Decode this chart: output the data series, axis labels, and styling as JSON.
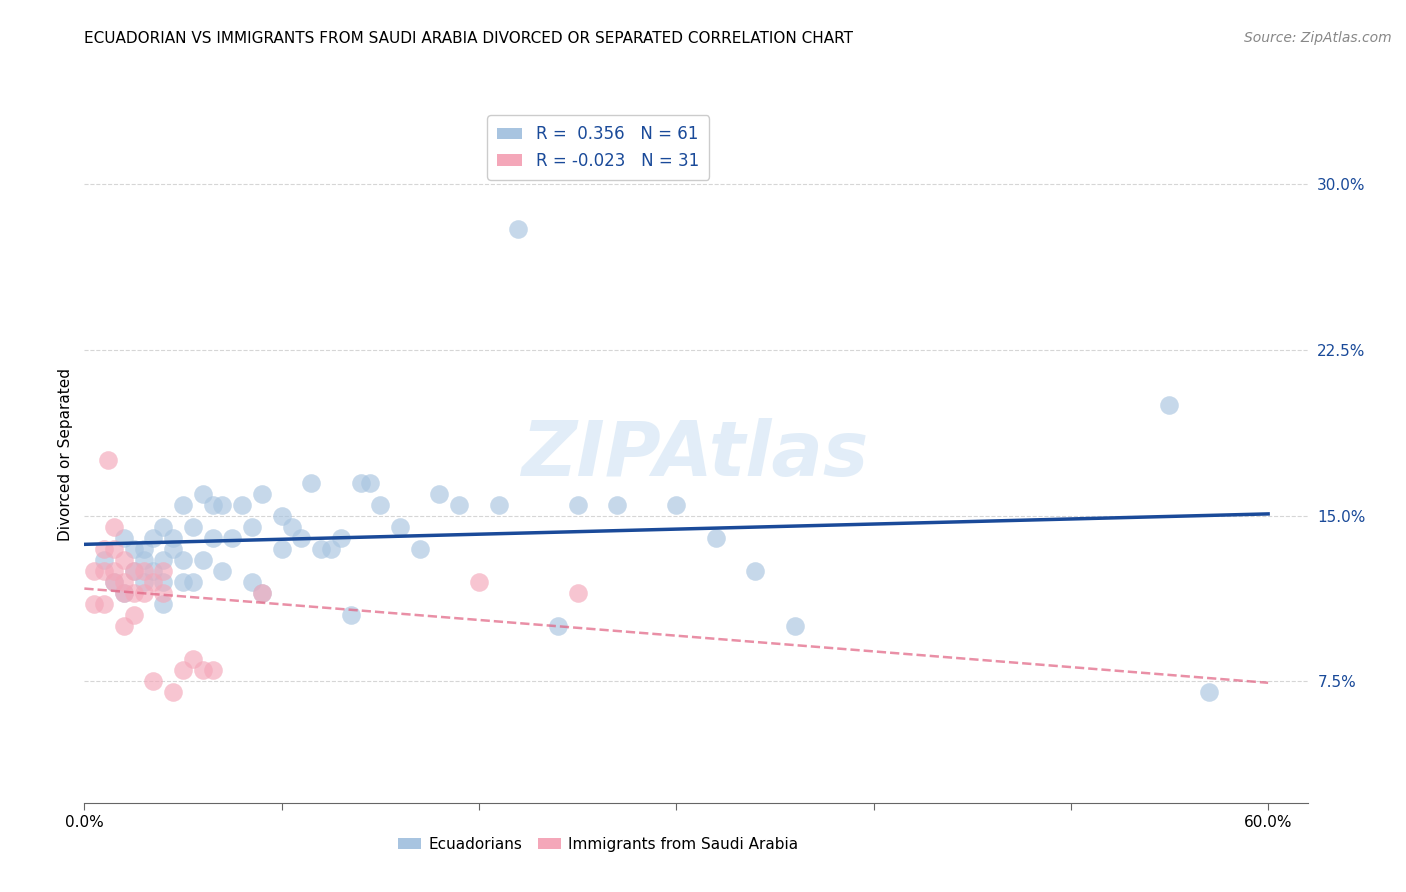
{
  "title": "ECUADORIAN VS IMMIGRANTS FROM SAUDI ARABIA DIVORCED OR SEPARATED CORRELATION CHART",
  "source": "Source: ZipAtlas.com",
  "ylabel": "Divorced or Separated",
  "ylabel_ticks_right": [
    "30.0%",
    "22.5%",
    "15.0%",
    "7.5%"
  ],
  "ylabel_vals": [
    0.3,
    0.225,
    0.15,
    0.075
  ],
  "xlim": [
    0.0,
    0.62
  ],
  "ylim": [
    0.02,
    0.335
  ],
  "blue_R": 0.356,
  "blue_N": 61,
  "pink_R": -0.023,
  "pink_N": 31,
  "blue_color": "#a8c4e0",
  "pink_color": "#f4a7b9",
  "blue_line_color": "#1a4a99",
  "pink_line_color": "#e06080",
  "watermark": "ZIPAtlas",
  "blue_points_x": [
    0.01,
    0.015,
    0.02,
    0.02,
    0.025,
    0.025,
    0.03,
    0.03,
    0.03,
    0.035,
    0.035,
    0.04,
    0.04,
    0.04,
    0.04,
    0.045,
    0.045,
    0.05,
    0.05,
    0.05,
    0.055,
    0.055,
    0.06,
    0.06,
    0.065,
    0.065,
    0.07,
    0.07,
    0.075,
    0.08,
    0.085,
    0.085,
    0.09,
    0.09,
    0.1,
    0.1,
    0.105,
    0.11,
    0.115,
    0.12,
    0.125,
    0.13,
    0.135,
    0.14,
    0.145,
    0.15,
    0.16,
    0.17,
    0.18,
    0.19,
    0.21,
    0.22,
    0.24,
    0.25,
    0.27,
    0.3,
    0.32,
    0.34,
    0.36,
    0.55,
    0.57
  ],
  "blue_points_y": [
    0.13,
    0.12,
    0.14,
    0.115,
    0.135,
    0.125,
    0.13,
    0.135,
    0.12,
    0.14,
    0.125,
    0.13,
    0.145,
    0.12,
    0.11,
    0.14,
    0.135,
    0.155,
    0.13,
    0.12,
    0.145,
    0.12,
    0.16,
    0.13,
    0.155,
    0.14,
    0.155,
    0.125,
    0.14,
    0.155,
    0.145,
    0.12,
    0.16,
    0.115,
    0.15,
    0.135,
    0.145,
    0.14,
    0.165,
    0.135,
    0.135,
    0.14,
    0.105,
    0.165,
    0.165,
    0.155,
    0.145,
    0.135,
    0.16,
    0.155,
    0.155,
    0.28,
    0.1,
    0.155,
    0.155,
    0.155,
    0.14,
    0.125,
    0.1,
    0.2,
    0.07
  ],
  "pink_points_x": [
    0.005,
    0.005,
    0.01,
    0.01,
    0.01,
    0.012,
    0.015,
    0.015,
    0.015,
    0.015,
    0.02,
    0.02,
    0.02,
    0.02,
    0.025,
    0.025,
    0.025,
    0.03,
    0.03,
    0.035,
    0.035,
    0.04,
    0.04,
    0.045,
    0.05,
    0.055,
    0.06,
    0.065,
    0.09,
    0.2,
    0.25
  ],
  "pink_points_y": [
    0.125,
    0.11,
    0.135,
    0.125,
    0.11,
    0.175,
    0.145,
    0.135,
    0.125,
    0.12,
    0.13,
    0.12,
    0.115,
    0.1,
    0.125,
    0.115,
    0.105,
    0.125,
    0.115,
    0.12,
    0.075,
    0.125,
    0.115,
    0.07,
    0.08,
    0.085,
    0.08,
    0.08,
    0.115,
    0.12,
    0.115
  ],
  "legend_label_blue": "Ecuadorians",
  "legend_label_pink": "Immigrants from Saudi Arabia"
}
